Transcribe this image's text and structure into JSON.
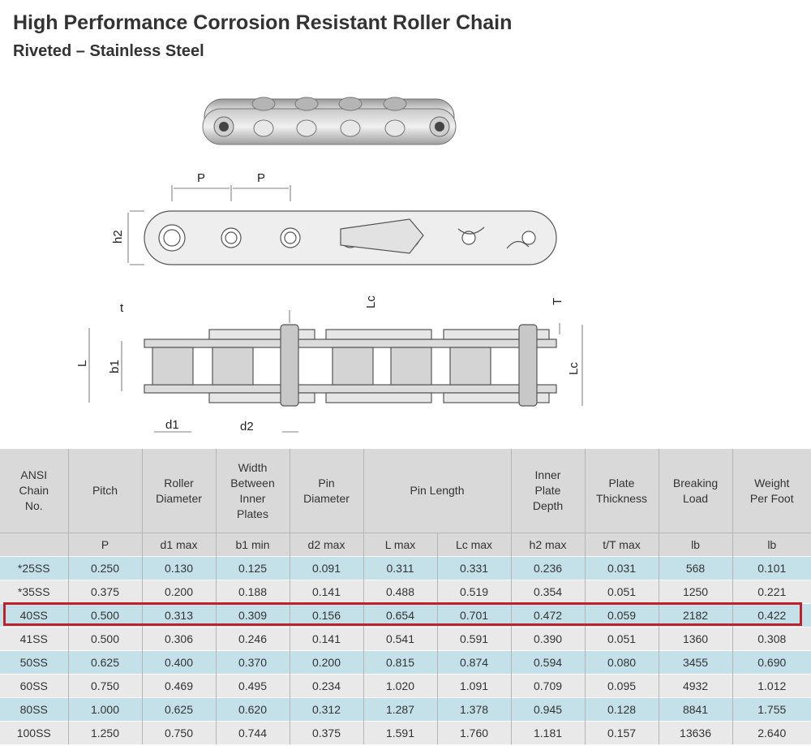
{
  "header": {
    "title": "High Performance Corrosion Resistant Roller Chain",
    "subtitle": "Riveted – Stainless Steel"
  },
  "diagram": {
    "labels": {
      "p1": "P",
      "p2": "P",
      "h2": "h2",
      "t": "t",
      "T": "T",
      "lc_top": "Lc",
      "lc_side": "Lc",
      "L": "L",
      "b1": "b1",
      "d1": "d1",
      "d2": "d2"
    }
  },
  "table": {
    "headers": [
      "ANSI\nChain\nNo.",
      "Pitch",
      "Roller\nDiameter",
      "Width\nBetween\nInner\nPlates",
      "Pin\nDiameter",
      "Pin Length",
      "Inner\nPlate\nDepth",
      "Plate\nThickness",
      "Breaking\nLoad",
      "Weight\nPer Foot"
    ],
    "units": [
      "",
      "P",
      "d1 max",
      "b1 min",
      "d2 max",
      "L max",
      "Lc max",
      "h2 max",
      "t/T max",
      "lb",
      "lb"
    ],
    "rows": [
      {
        "cells": [
          "*25SS",
          "0.250",
          "0.130",
          "0.125",
          "0.091",
          "0.311",
          "0.331",
          "0.236",
          "0.031",
          "568",
          "0.101"
        ],
        "style": "blue"
      },
      {
        "cells": [
          "*35SS",
          "0.375",
          "0.200",
          "0.188",
          "0.141",
          "0.488",
          "0.519",
          "0.354",
          "0.051",
          "1250",
          "0.221"
        ],
        "style": "grey"
      },
      {
        "cells": [
          "40SS",
          "0.500",
          "0.313",
          "0.309",
          "0.156",
          "0.654",
          "0.701",
          "0.472",
          "0.059",
          "2182",
          "0.422"
        ],
        "style": "blue",
        "highlighted": true
      },
      {
        "cells": [
          "41SS",
          "0.500",
          "0.306",
          "0.246",
          "0.141",
          "0.541",
          "0.591",
          "0.390",
          "0.051",
          "1360",
          "0.308"
        ],
        "style": "grey"
      },
      {
        "cells": [
          "50SS",
          "0.625",
          "0.400",
          "0.370",
          "0.200",
          "0.815",
          "0.874",
          "0.594",
          "0.080",
          "3455",
          "0.690"
        ],
        "style": "blue"
      },
      {
        "cells": [
          "60SS",
          "0.750",
          "0.469",
          "0.495",
          "0.234",
          "1.020",
          "1.091",
          "0.709",
          "0.095",
          "4932",
          "1.012"
        ],
        "style": "grey"
      },
      {
        "cells": [
          "80SS",
          "1.000",
          "0.625",
          "0.620",
          "0.312",
          "1.287",
          "1.378",
          "0.945",
          "0.128",
          "8841",
          "1.755"
        ],
        "style": "blue"
      },
      {
        "cells": [
          "100SS",
          "1.250",
          "0.750",
          "0.744",
          "0.375",
          "1.591",
          "1.760",
          "1.181",
          "0.157",
          "13636",
          "2.640"
        ],
        "style": "grey"
      }
    ]
  },
  "colors": {
    "header_bg": "#d9d9d9",
    "row_blue": "#c4e1ea",
    "row_grey": "#e9e9e9",
    "highlight": "#c0202a"
  }
}
